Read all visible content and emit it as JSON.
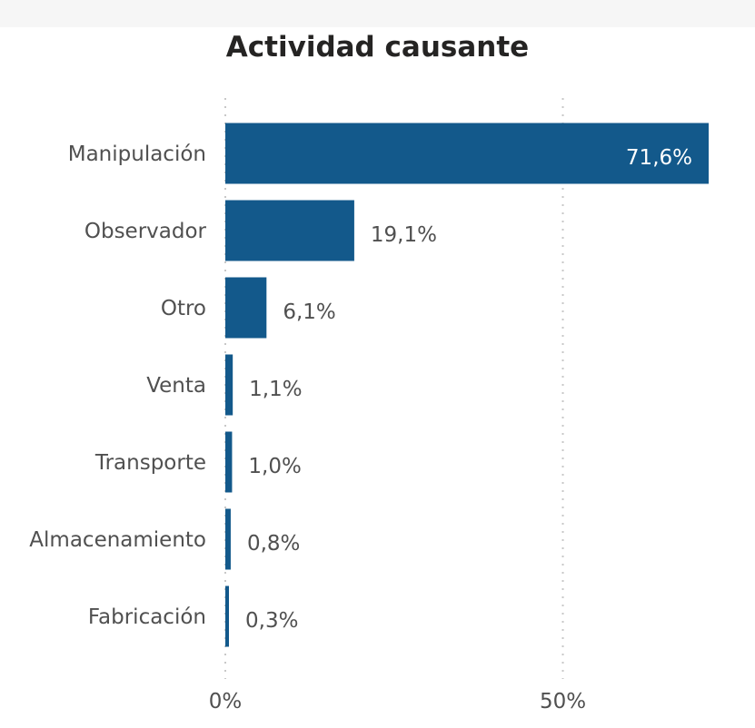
{
  "colors": {
    "bar": "#13598b",
    "grid": "#c8c8c8",
    "text": "#505050",
    "title": "#252423"
  },
  "chart_data": {
    "type": "bar",
    "orientation": "horizontal",
    "title": "Actividad causante",
    "categories": [
      "Manipulación",
      "Observador",
      "Otro",
      "Venta",
      "Transporte",
      "Almacenamiento",
      "Fabricación"
    ],
    "values": [
      71.6,
      19.1,
      6.1,
      1.1,
      1.0,
      0.8,
      0.3
    ],
    "value_labels": [
      "71,6%",
      "19,1%",
      "6,1%",
      "1,1%",
      "1,0%",
      "0,8%",
      "0,3%"
    ],
    "x_ticks": [
      {
        "value": 0,
        "label": "0%"
      },
      {
        "value": 50,
        "label": "50%"
      }
    ],
    "xlim": [
      0,
      71.6
    ],
    "xlabel": "",
    "ylabel": "",
    "grid": true,
    "legend": "none"
  }
}
